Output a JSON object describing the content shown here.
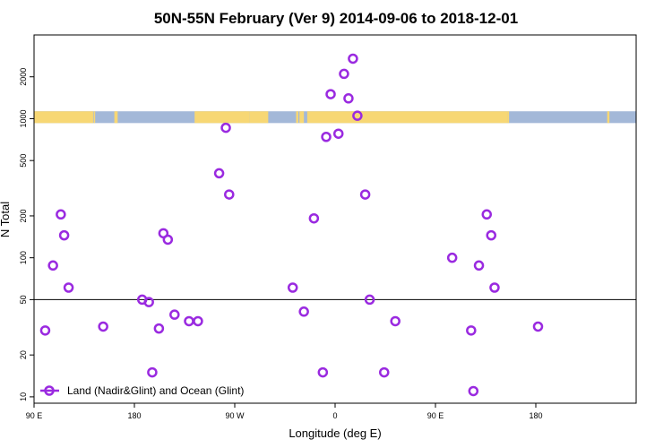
{
  "chart_data": {
    "type": "scatter",
    "title": "50N-55N February (Ver 9)   2014-09-06 to 2018-12-01",
    "xlabel": "Longitude (deg E)",
    "ylabel": "N Total",
    "x_scale": "longitude, 90 E to 180 E spanning two wraps (540 degrees)",
    "y_scale": "log",
    "xlim": [
      90,
      630
    ],
    "ylim": [
      9,
      4000
    ],
    "x_ticks": [
      {
        "value": 90,
        "label": "90 E"
      },
      {
        "value": 180,
        "label": "180"
      },
      {
        "value": 270,
        "label": "90 W"
      },
      {
        "value": 360,
        "label": "0"
      },
      {
        "value": 450,
        "label": "90 E"
      },
      {
        "value": 540,
        "label": "180"
      }
    ],
    "y_ticks": [
      {
        "value": 10,
        "label": "10"
      },
      {
        "value": 20,
        "label": "20"
      },
      {
        "value": 50,
        "label": "50"
      },
      {
        "value": 100,
        "label": "100"
      },
      {
        "value": 200,
        "label": "200"
      },
      {
        "value": 500,
        "label": "500"
      },
      {
        "value": 1000,
        "label": "1000"
      },
      {
        "value": 2000,
        "label": "2000"
      }
    ],
    "reference_line": {
      "y": 50,
      "color": "#000000"
    },
    "land_ocean_band": {
      "y_low": 930,
      "y_high": 1130,
      "ocean_color": "#a3b8d8",
      "land_color": "#f7d774",
      "land_segments": [
        [
          90,
          143
        ],
        [
          143.5,
          144.8
        ],
        [
          162,
          165
        ],
        [
          234,
          280
        ],
        [
          279,
          283
        ],
        [
          283,
          300
        ],
        [
          325,
          327
        ],
        [
          328,
          332
        ],
        [
          335,
          515
        ],
        [
          515,
          516
        ],
        [
          604,
          606
        ]
      ]
    },
    "series": [
      {
        "name": "Land (Nadir&Glint) and Ocean (Glint)",
        "color": "#9a2ae0",
        "points": [
          [
            100,
            30
          ],
          [
            107,
            88
          ],
          [
            114,
            205
          ],
          [
            117,
            145
          ],
          [
            121,
            61
          ],
          [
            152,
            32
          ],
          [
            187,
            50
          ],
          [
            193,
            48
          ],
          [
            196,
            15
          ],
          [
            202,
            31
          ],
          [
            206,
            150
          ],
          [
            210,
            135
          ],
          [
            216,
            39
          ],
          [
            229,
            35
          ],
          [
            237,
            35
          ],
          [
            256,
            405
          ],
          [
            262,
            860
          ],
          [
            265,
            285
          ],
          [
            322,
            61
          ],
          [
            332,
            41
          ],
          [
            341,
            192
          ],
          [
            349,
            15
          ],
          [
            352,
            740
          ],
          [
            356,
            1500
          ],
          [
            363,
            780
          ],
          [
            368,
            2100
          ],
          [
            372,
            1400
          ],
          [
            376,
            2700
          ],
          [
            380,
            1050
          ],
          [
            387,
            285
          ],
          [
            391,
            50
          ],
          [
            404,
            15
          ],
          [
            414,
            35
          ],
          [
            465,
            100
          ],
          [
            482,
            30
          ],
          [
            484,
            11
          ],
          [
            489,
            88
          ],
          [
            496,
            205
          ],
          [
            500,
            145
          ],
          [
            503,
            61
          ],
          [
            542,
            32
          ]
        ]
      }
    ],
    "legend": {
      "position": "bottom-left"
    }
  }
}
